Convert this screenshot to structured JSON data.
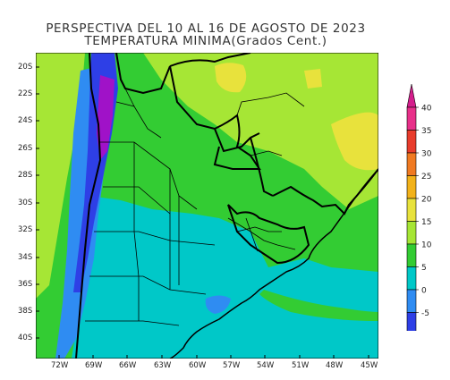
{
  "title_line1": "PERSPECTIVA DEL 10 AL 16 DE AGOSTO DE 2023",
  "title_line2": "TEMPERATURA MINIMA(Grados Cent.)",
  "lat_labels": [
    "20S",
    "22S",
    "24S",
    "26S",
    "28S",
    "30S",
    "32S",
    "34S",
    "36S",
    "38S",
    "40S"
  ],
  "lon_labels": [
    "72W",
    "69W",
    "66W",
    "63W",
    "60W",
    "57W",
    "54W",
    "51W",
    "48W",
    "45W"
  ],
  "colorbar": {
    "ticks": [
      "40",
      "35",
      "30",
      "25",
      "20",
      "15",
      "10",
      "5",
      "0",
      "-5"
    ],
    "bands": [
      {
        "range": "35 a 40",
        "color": "#e8308a"
      },
      {
        "range": "30 a 35",
        "color": "#e83c2c"
      },
      {
        "range": "25 a 30",
        "color": "#f07a22"
      },
      {
        "range": "20 a 25",
        "color": "#f2b21a"
      },
      {
        "range": "15 a 20",
        "color": "#e8e23c"
      },
      {
        "range": "10 a 15",
        "color": "#a6e635"
      },
      {
        "range": "5 a 10",
        "color": "#33cc33"
      },
      {
        "range": "0 a 5",
        "color": "#00c8c8"
      },
      {
        "range": "-5 a 0",
        "color": "#2f8cf2"
      },
      {
        "range": "-10 a -5",
        "color": "#2e3fe6"
      }
    ],
    "bottom_arrow_color": "#a012c8",
    "top_arrow_color": "#d41e8c"
  }
}
